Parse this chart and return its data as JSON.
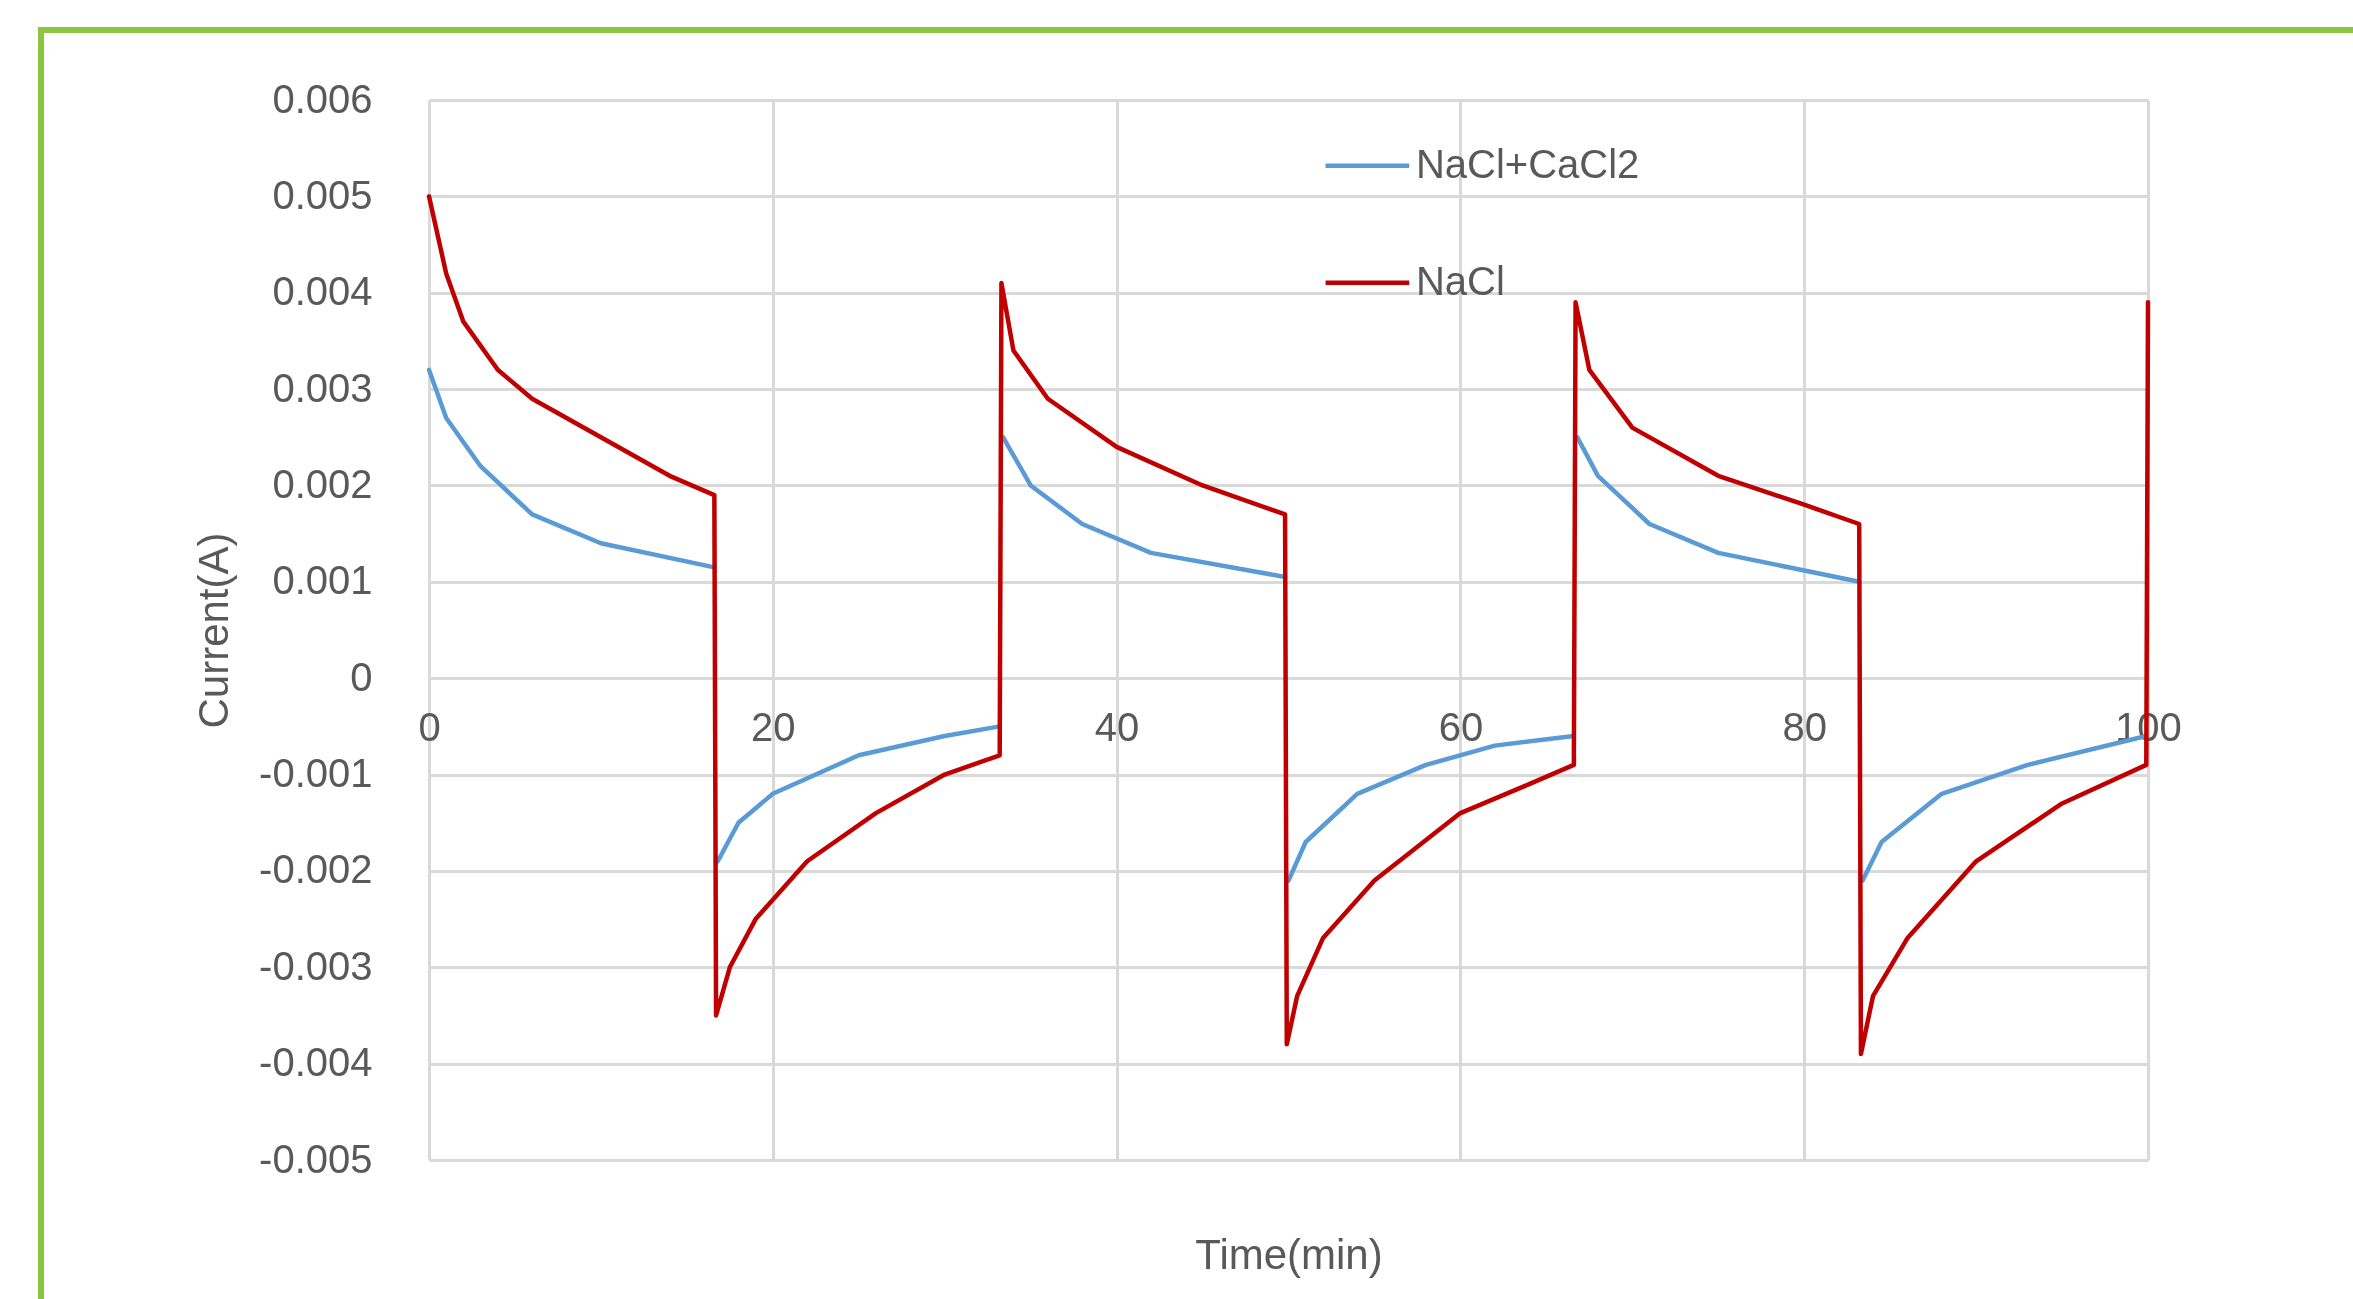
{
  "chart_data": {
    "type": "line",
    "xlabel": "Time(min)",
    "ylabel": "Current(A)",
    "xlim": [
      0,
      100
    ],
    "xticks": [
      0,
      20,
      40,
      60,
      80,
      100
    ],
    "ylim": [
      -0.005,
      0.006
    ],
    "yticks": [
      -0.005,
      -0.004,
      -0.003,
      -0.002,
      -0.001,
      0,
      0.001,
      0.002,
      0.003,
      0.004,
      0.005,
      0.006
    ],
    "grid": true,
    "legend": "top right",
    "marker": "none",
    "line_style": "solid",
    "series": [
      {
        "name": "NaCl+CaCl2",
        "color": "#5b9bd5",
        "x": [
          0,
          1,
          3,
          6,
          10,
          16.6,
          16.7,
          16.8,
          18,
          20,
          25,
          30,
          33.2,
          33.3,
          33.4,
          35,
          38,
          42,
          49.8,
          49.9,
          50,
          51,
          54,
          58,
          62,
          66.6,
          66.7,
          66.8,
          68,
          71,
          75,
          83.2,
          83.3,
          83.4,
          84.5,
          88,
          93,
          99.9
        ],
        "values": [
          0.0032,
          0.0027,
          0.0022,
          0.0017,
          0.0014,
          0.00115,
          null,
          -0.0019,
          -0.0015,
          -0.0012,
          -0.0008,
          -0.0006,
          -0.0005,
          null,
          0.0025,
          0.002,
          0.0016,
          0.0013,
          0.00105,
          null,
          -0.0021,
          -0.0017,
          -0.0012,
          -0.0009,
          -0.0007,
          -0.0006,
          null,
          0.0025,
          0.0021,
          0.0016,
          0.0013,
          0.001,
          null,
          -0.0021,
          -0.0017,
          -0.0012,
          -0.0009,
          -0.0006
        ]
      },
      {
        "name": "NaCl",
        "color": "#c00000",
        "x": [
          0,
          1,
          2,
          4,
          6,
          10,
          14,
          16.6,
          16.7,
          17.5,
          19,
          22,
          26,
          30,
          33.2,
          33.3,
          34,
          36,
          40,
          45,
          49.8,
          49.9,
          50.5,
          52,
          55,
          60,
          64,
          66.6,
          66.7,
          67.5,
          70,
          75,
          80,
          83.2,
          83.3,
          84,
          86,
          90,
          95,
          99.9,
          100
        ],
        "values": [
          0.005,
          0.0042,
          0.0037,
          0.0032,
          0.0029,
          0.0025,
          0.0021,
          0.0019,
          -0.0035,
          -0.003,
          -0.0025,
          -0.0019,
          -0.0014,
          -0.001,
          -0.0008,
          0.0041,
          0.0034,
          0.0029,
          0.0024,
          0.002,
          0.0017,
          -0.0038,
          -0.0033,
          -0.0027,
          -0.0021,
          -0.0014,
          -0.0011,
          -0.0009,
          0.0039,
          0.0032,
          0.0026,
          0.0021,
          0.0018,
          0.0016,
          -0.0039,
          -0.0033,
          -0.0027,
          -0.0019,
          -0.0013,
          -0.0009,
          0.0039
        ]
      }
    ]
  }
}
